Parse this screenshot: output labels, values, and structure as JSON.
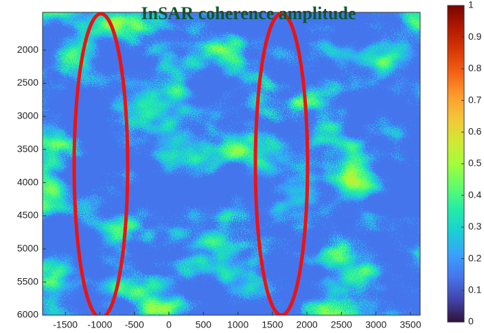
{
  "chart_data": {
    "type": "heatmap",
    "title": "InSAR coherence amplitude",
    "colormap": "turbo",
    "xlim": [
      -1830,
      3640
    ],
    "xticks": [
      -1500,
      -1000,
      -500,
      0,
      500,
      1000,
      1500,
      2000,
      2500,
      3000,
      3500
    ],
    "ylim": [
      1430,
      6000
    ],
    "yticks": [
      2000,
      2500,
      3000,
      3500,
      4000,
      4500,
      5000,
      5500,
      6000
    ],
    "y_reversed": true,
    "clim": [
      0,
      1
    ],
    "cticks": [
      0,
      0.1,
      0.2,
      0.3,
      0.4,
      0.5,
      0.6,
      0.7,
      0.8,
      0.9,
      1
    ]
  }
}
